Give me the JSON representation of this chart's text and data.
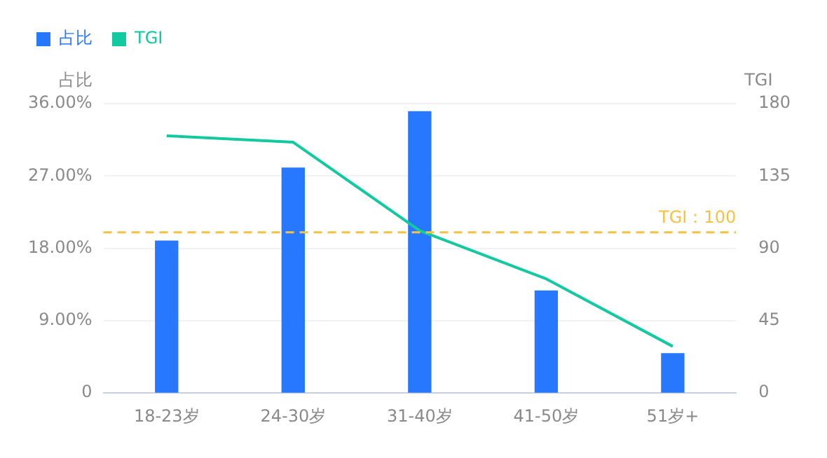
{
  "chart_data": {
    "type": "bar",
    "ylabel": "占比",
    "y2label": "TGI",
    "categories": [
      "18-23岁",
      "24-30岁",
      "31-40岁",
      "41-50岁",
      "51岁+"
    ],
    "series": [
      {
        "name": "占比",
        "color": "#2878ff",
        "values": [
          18.9,
          28.0,
          35.0,
          12.7,
          4.9
        ]
      },
      {
        "name": "TGI",
        "type": "line",
        "axis": "y2",
        "color": "#12c9a0",
        "values": [
          160,
          156,
          101,
          71,
          29
        ]
      }
    ],
    "ylim": [
      0,
      36
    ],
    "yticks": [
      {
        "value": 0,
        "label": "0"
      },
      {
        "value": 9,
        "label": "9.00%"
      },
      {
        "value": 18,
        "label": "18.00%"
      },
      {
        "value": 27,
        "label": "27.00%"
      },
      {
        "value": 36,
        "label": "36.00%"
      }
    ],
    "y2lim": [
      0,
      180
    ],
    "y2ticks": [
      0,
      45,
      90,
      135,
      180
    ],
    "ref_lines": [
      {
        "axis": "y2",
        "value": 100,
        "label": "TGI：100",
        "color": "#f7c244",
        "line_style": "dashed"
      }
    ],
    "grid": "y",
    "legend": "top left",
    "marker": "none",
    "line_style": "solid"
  }
}
